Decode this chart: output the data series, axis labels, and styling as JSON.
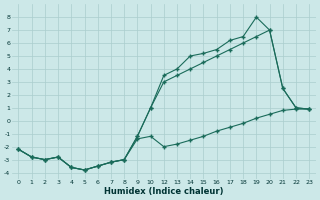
{
  "xlabel": "Humidex (Indice chaleur)",
  "bg_color": "#cce8e8",
  "grid_color": "#aacece",
  "line_color": "#1a6b5a",
  "ylim": [
    -4.5,
    9.0
  ],
  "xtick_labels": [
    "0",
    "1",
    "2",
    "3",
    "4",
    "5",
    "6",
    "7",
    "8",
    "9",
    "10",
    "12",
    "13",
    "14",
    "15",
    "16",
    "17",
    "18",
    "19",
    "20",
    "21",
    "22",
    "23"
  ],
  "ytick_vals": [
    -4,
    -3,
    -2,
    -1,
    0,
    1,
    2,
    3,
    4,
    5,
    6,
    7,
    8
  ],
  "line1_y": [
    -2.2,
    -2.8,
    -3.0,
    -2.8,
    -3.6,
    -3.8,
    -3.5,
    -3.2,
    -3.0,
    -1.2,
    1.0,
    3.5,
    4.0,
    5.0,
    5.2,
    5.5,
    6.2,
    6.5,
    8.0,
    7.0,
    2.5,
    1.0,
    0.9
  ],
  "line2_y": [
    -2.2,
    -2.8,
    -3.0,
    -2.8,
    -3.6,
    -3.8,
    -3.5,
    -3.2,
    -3.0,
    -1.2,
    1.0,
    3.0,
    3.5,
    4.0,
    4.5,
    5.0,
    5.5,
    6.0,
    6.5,
    7.0,
    2.5,
    1.0,
    0.9
  ],
  "line3_y": [
    -2.2,
    -2.8,
    -3.0,
    -2.8,
    -3.6,
    -3.8,
    -3.5,
    -3.2,
    -3.0,
    -1.4,
    -1.2,
    -2.0,
    -1.8,
    -1.5,
    -1.2,
    -0.8,
    -0.5,
    -0.2,
    0.2,
    0.5,
    0.8,
    0.9,
    0.9
  ]
}
